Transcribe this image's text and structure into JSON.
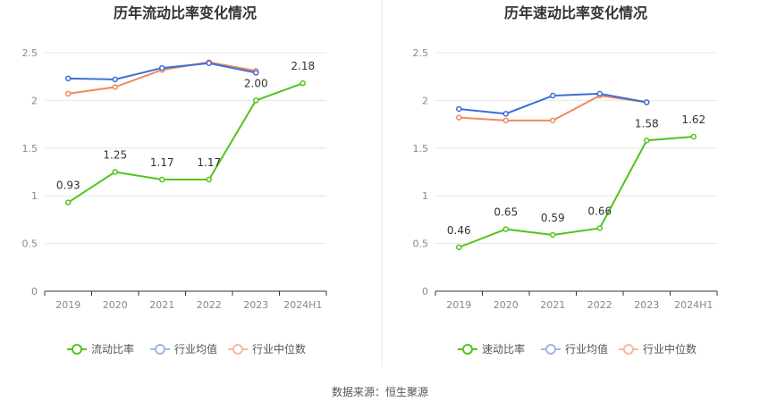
{
  "chart_data": [
    {
      "type": "line",
      "title": "历年流动比率变化情况",
      "categories": [
        "2019",
        "2020",
        "2021",
        "2022",
        "2023",
        "2024H1"
      ],
      "ylim": [
        0,
        2.5
      ],
      "yticks": [
        "0",
        "0.5",
        "1",
        "1.5",
        "2",
        "2.5"
      ],
      "grid": true,
      "legend_position": "bottom",
      "series": [
        {
          "name": "流动比率",
          "color": "#52c41a",
          "values": [
            0.93,
            1.25,
            1.17,
            1.17,
            2.0,
            2.18
          ],
          "labels": [
            "0.93",
            "1.25",
            "1.17",
            "1.17",
            "2.00",
            "2.18"
          ]
        },
        {
          "name": "行业均值",
          "color": "#3b6fd6",
          "values": [
            2.23,
            2.22,
            2.34,
            2.39,
            2.29,
            null
          ]
        },
        {
          "name": "行业中位数",
          "color": "#f08a5d",
          "values": [
            2.07,
            2.14,
            2.32,
            2.4,
            2.31,
            null
          ]
        }
      ]
    },
    {
      "type": "line",
      "title": "历年速动比率变化情况",
      "categories": [
        "2019",
        "2020",
        "2021",
        "2022",
        "2023",
        "2024H1"
      ],
      "ylim": [
        0,
        2.5
      ],
      "yticks": [
        "0",
        "0.5",
        "1",
        "1.5",
        "2",
        "2.5"
      ],
      "grid": true,
      "legend_position": "bottom",
      "series": [
        {
          "name": "速动比率",
          "color": "#52c41a",
          "values": [
            0.46,
            0.65,
            0.59,
            0.66,
            1.58,
            1.62
          ],
          "labels": [
            "0.46",
            "0.65",
            "0.59",
            "0.66",
            "1.58",
            "1.62"
          ]
        },
        {
          "name": "行业均值",
          "color": "#3b6fd6",
          "values": [
            1.91,
            1.86,
            2.05,
            2.07,
            1.98,
            null
          ]
        },
        {
          "name": "行业中位数",
          "color": "#f08a5d",
          "values": [
            1.82,
            1.79,
            1.79,
            2.05,
            1.98,
            null
          ]
        }
      ]
    }
  ],
  "legend_faded_colors": {
    "avg": "#9fb5e6",
    "median": "#f5bba0"
  },
  "source": "数据来源：恒生聚源"
}
